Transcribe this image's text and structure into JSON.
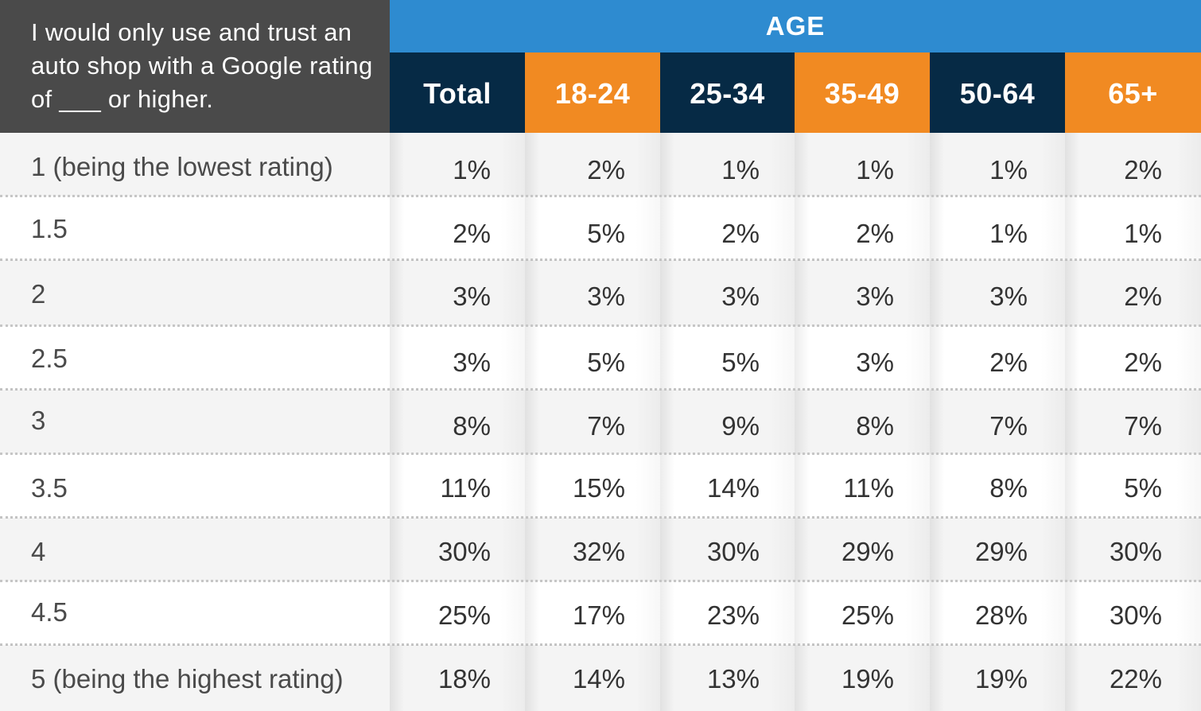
{
  "colors": {
    "question_bg": "#4a4a4a",
    "age_bar": "#2e8bd0",
    "header_navy": "#062a45",
    "header_orange": "#f18a22"
  },
  "table": {
    "question": "I would only use and trust an auto shop with a Google rating of ___ or higher.",
    "group_header": "AGE",
    "columns": [
      {
        "label": "Total",
        "style": "navy"
      },
      {
        "label": "18-24",
        "style": "orange"
      },
      {
        "label": "25-34",
        "style": "navy"
      },
      {
        "label": "35-49",
        "style": "orange"
      },
      {
        "label": "50-64",
        "style": "navy"
      },
      {
        "label": "65+",
        "style": "orange"
      }
    ],
    "rows": [
      {
        "label": "1 (being the lowest rating)",
        "cells": [
          "1%",
          "2%",
          "1%",
          "1%",
          "1%",
          "2%"
        ]
      },
      {
        "label": "1.5",
        "cells": [
          "2%",
          "5%",
          "2%",
          "2%",
          "1%",
          "1%"
        ]
      },
      {
        "label": "2",
        "cells": [
          "3%",
          "3%",
          "3%",
          "3%",
          "3%",
          "2%"
        ]
      },
      {
        "label": "2.5",
        "cells": [
          "3%",
          "5%",
          "5%",
          "3%",
          "2%",
          "2%"
        ]
      },
      {
        "label": "3",
        "cells": [
          "8%",
          "7%",
          "9%",
          "8%",
          "7%",
          "7%"
        ]
      },
      {
        "label": "3.5",
        "cells": [
          "11%",
          "15%",
          "14%",
          "11%",
          "8%",
          "5%"
        ]
      },
      {
        "label": "4",
        "cells": [
          "30%",
          "32%",
          "30%",
          "29%",
          "29%",
          "30%"
        ]
      },
      {
        "label": "4.5",
        "cells": [
          "25%",
          "17%",
          "23%",
          "25%",
          "28%",
          "30%"
        ]
      },
      {
        "label": "5 (being the highest rating)",
        "cells": [
          "18%",
          "14%",
          "13%",
          "19%",
          "19%",
          "22%"
        ]
      }
    ]
  },
  "chart_data": {
    "type": "table",
    "title": "I would only use and trust an auto shop with a Google rating of ___ or higher.",
    "group_header": "AGE",
    "categories": [
      "1 (being the lowest rating)",
      "1.5",
      "2",
      "2.5",
      "3",
      "3.5",
      "4",
      "4.5",
      "5 (being the highest rating)"
    ],
    "series": [
      {
        "name": "Total",
        "values": [
          1,
          2,
          3,
          3,
          8,
          11,
          30,
          25,
          18
        ]
      },
      {
        "name": "18-24",
        "values": [
          2,
          5,
          3,
          5,
          7,
          15,
          32,
          17,
          14
        ]
      },
      {
        "name": "25-34",
        "values": [
          1,
          2,
          3,
          5,
          9,
          14,
          30,
          23,
          13
        ]
      },
      {
        "name": "35-49",
        "values": [
          1,
          2,
          3,
          3,
          8,
          11,
          29,
          25,
          19
        ]
      },
      {
        "name": "50-64",
        "values": [
          1,
          1,
          3,
          2,
          7,
          8,
          29,
          28,
          19
        ]
      },
      {
        "name": "65+",
        "values": [
          2,
          1,
          2,
          2,
          7,
          5,
          30,
          30,
          22
        ]
      }
    ]
  }
}
